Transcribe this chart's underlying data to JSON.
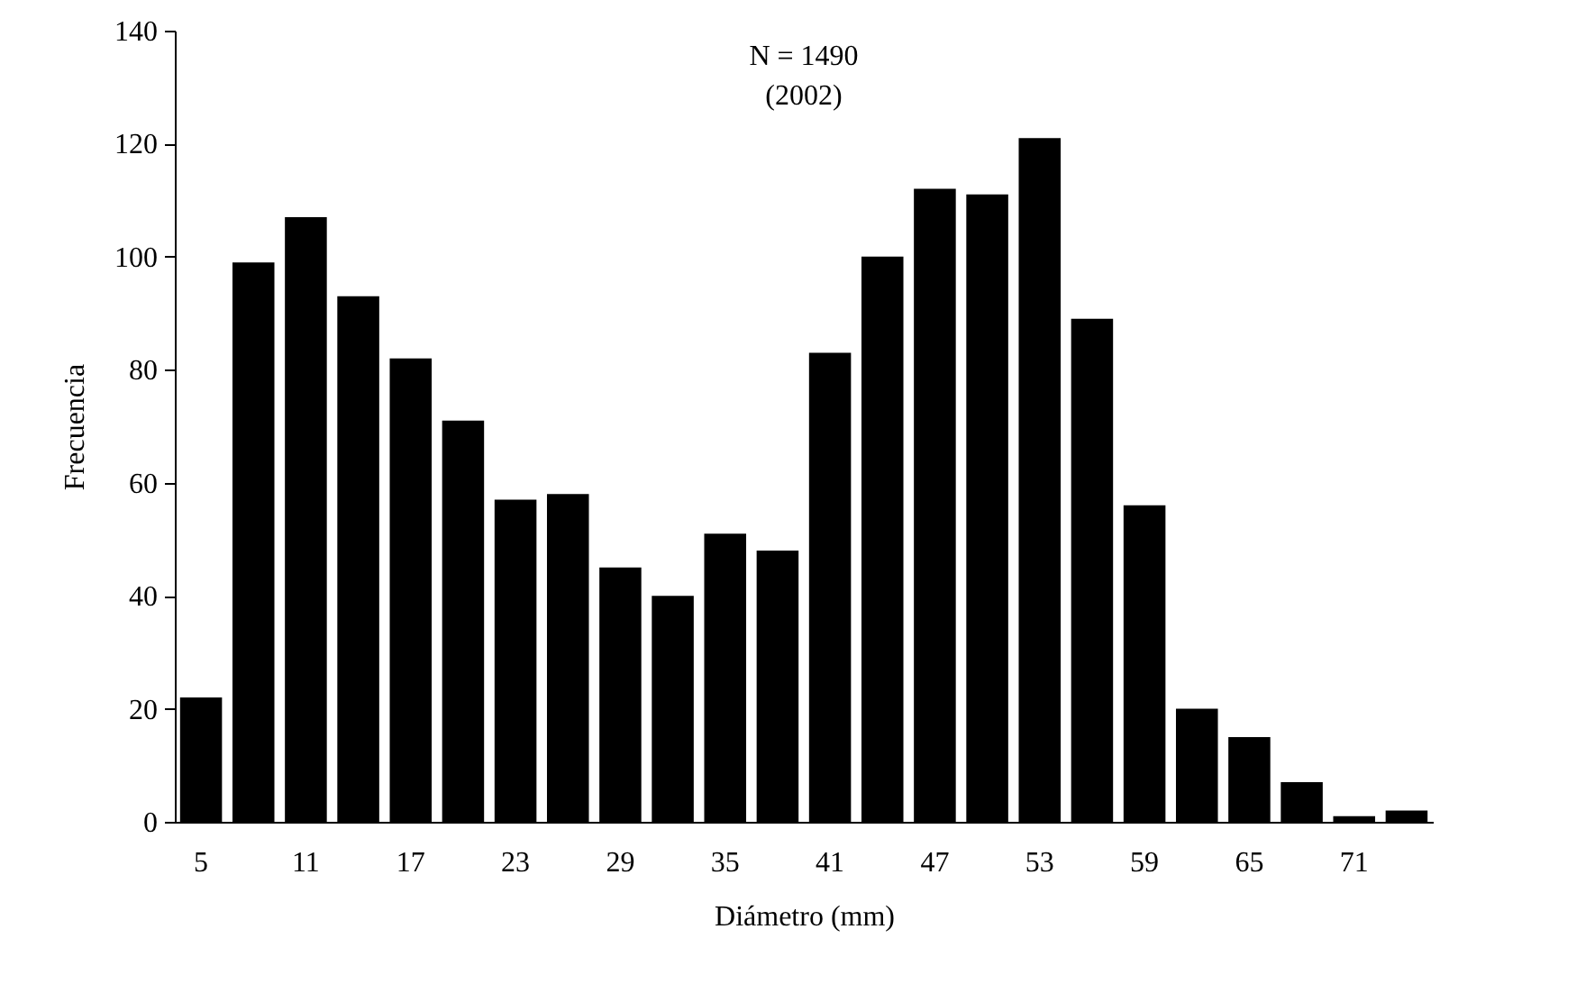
{
  "chart_data": {
    "type": "bar",
    "title": "N = 1490",
    "subtitle": "(2002)",
    "xlabel": "Diámetro (mm)",
    "ylabel": "Frecuencia",
    "categories": [
      "5",
      null,
      "11",
      null,
      "17",
      null,
      "23",
      null,
      "29",
      null,
      "35",
      null,
      "41",
      null,
      "47",
      null,
      "53",
      null,
      "59",
      null,
      "65",
      null,
      "71",
      null
    ],
    "values": [
      22,
      99,
      107,
      93,
      82,
      71,
      57,
      58,
      45,
      40,
      51,
      48,
      83,
      100,
      112,
      111,
      121,
      89,
      56,
      20,
      15,
      7,
      1,
      2
    ],
    "color": "#000000",
    "ylim": [
      0,
      140
    ],
    "yticks": [
      0,
      20,
      40,
      60,
      80,
      100,
      120,
      140
    ]
  }
}
